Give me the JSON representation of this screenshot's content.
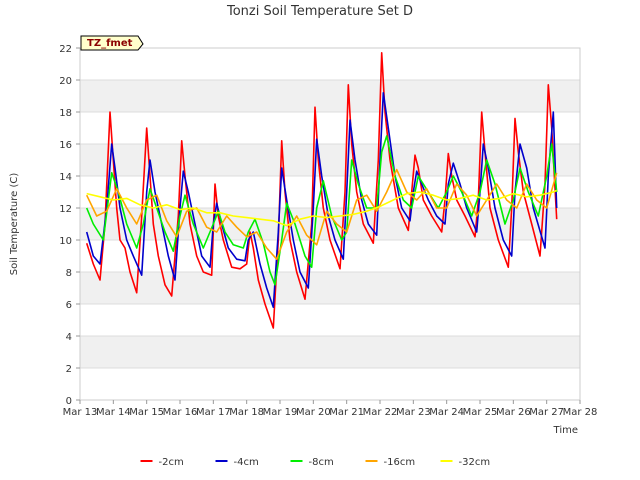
{
  "chart_data": {
    "type": "line",
    "title": "Tonzi Soil Temperature Set D",
    "xlabel": "Time",
    "ylabel": "Soil Temperature (C)",
    "tag": "TZ_fmet",
    "xlim": [
      13,
      28
    ],
    "ylim": [
      0,
      22
    ],
    "yticks": [
      0,
      2,
      4,
      6,
      8,
      10,
      12,
      14,
      16,
      18,
      20,
      22
    ],
    "xticks": [
      {
        "value": 13,
        "label": "Mar 13"
      },
      {
        "value": 14,
        "label": "Mar 14"
      },
      {
        "value": 15,
        "label": "Mar 15"
      },
      {
        "value": 16,
        "label": "Mar 16"
      },
      {
        "value": 17,
        "label": "Mar 17"
      },
      {
        "value": 18,
        "label": "Mar 18"
      },
      {
        "value": 19,
        "label": "Mar 19"
      },
      {
        "value": 20,
        "label": "Mar 20"
      },
      {
        "value": 21,
        "label": "Mar 21"
      },
      {
        "value": 22,
        "label": "Mar 22"
      },
      {
        "value": 23,
        "label": "Mar 23"
      },
      {
        "value": 24,
        "label": "Mar 24"
      },
      {
        "value": 25,
        "label": "Mar 25"
      },
      {
        "value": 26,
        "label": "Mar 26"
      },
      {
        "value": 27,
        "label": "Mar 27"
      },
      {
        "value": 28,
        "label": "Mar 28"
      }
    ],
    "grid": true,
    "legend_position": "bottom",
    "series": [
      {
        "name": "-2cm",
        "color": "#ff0000",
        "x": [
          13.2,
          13.4,
          13.6,
          13.75,
          13.9,
          14.0,
          14.1,
          14.2,
          14.35,
          14.5,
          14.7,
          14.85,
          15.0,
          15.1,
          15.2,
          15.35,
          15.55,
          15.75,
          15.95,
          16.05,
          16.15,
          16.3,
          16.5,
          16.7,
          16.95,
          17.05,
          17.15,
          17.3,
          17.55,
          17.8,
          18.0,
          18.1,
          18.2,
          18.35,
          18.55,
          18.8,
          18.95,
          19.05,
          19.15,
          19.3,
          19.5,
          19.75,
          19.95,
          20.05,
          20.15,
          20.3,
          20.5,
          20.8,
          20.95,
          21.05,
          21.15,
          21.3,
          21.5,
          21.8,
          21.95,
          22.05,
          22.15,
          22.3,
          22.55,
          22.85,
          22.95,
          23.05,
          23.15,
          23.3,
          23.55,
          23.85,
          23.95,
          24.05,
          24.15,
          24.3,
          24.55,
          24.85,
          24.95,
          25.05,
          25.15,
          25.3,
          25.55,
          25.85,
          25.95,
          26.05,
          26.15,
          26.3,
          26.55,
          26.8,
          26.95,
          27.05,
          27.15,
          27.3
        ],
        "y": [
          9.8,
          8.5,
          7.5,
          11.0,
          18.0,
          15.0,
          12.0,
          10.0,
          9.5,
          8.0,
          6.7,
          11.5,
          17.0,
          14.0,
          11.0,
          9.0,
          7.2,
          6.5,
          11.5,
          16.2,
          14.0,
          11.0,
          9.0,
          8.0,
          7.8,
          13.5,
          11.5,
          10.0,
          8.3,
          8.2,
          8.5,
          10.5,
          9.5,
          7.5,
          6.0,
          4.5,
          10.0,
          16.2,
          13.0,
          10.0,
          8.0,
          6.3,
          11.0,
          18.3,
          15.0,
          12.0,
          10.0,
          8.2,
          13.0,
          19.7,
          16.0,
          13.0,
          11.0,
          9.8,
          15.0,
          21.7,
          18.0,
          15.0,
          12.0,
          10.6,
          13.0,
          15.3,
          14.5,
          12.5,
          11.5,
          10.5,
          12.5,
          15.4,
          14.0,
          12.5,
          11.5,
          10.2,
          12.5,
          18.0,
          15.5,
          12.0,
          10.0,
          8.3,
          12.0,
          17.6,
          15.5,
          13.0,
          11.0,
          9.0,
          13.5,
          19.7,
          17.0,
          11.3
        ]
      },
      {
        "name": "-4cm",
        "color": "#0000cc",
        "x": [
          13.2,
          13.4,
          13.6,
          13.8,
          13.95,
          14.05,
          14.2,
          14.4,
          14.6,
          14.85,
          15.0,
          15.1,
          15.25,
          15.45,
          15.65,
          15.85,
          16.0,
          16.1,
          16.25,
          16.45,
          16.65,
          16.9,
          17.0,
          17.1,
          17.25,
          17.45,
          17.7,
          17.95,
          18.05,
          18.2,
          18.4,
          18.6,
          18.8,
          18.95,
          19.05,
          19.2,
          19.4,
          19.6,
          19.85,
          20.0,
          20.1,
          20.25,
          20.45,
          20.65,
          20.9,
          21.0,
          21.1,
          21.25,
          21.45,
          21.65,
          21.9,
          22.0,
          22.1,
          22.25,
          22.45,
          22.65,
          22.9,
          23.0,
          23.1,
          23.25,
          23.45,
          23.7,
          23.95,
          24.05,
          24.2,
          24.4,
          24.6,
          24.9,
          25.0,
          25.1,
          25.25,
          25.45,
          25.7,
          25.95,
          26.05,
          26.2,
          26.4,
          26.6,
          26.95,
          27.05,
          27.2,
          27.3
        ],
        "y": [
          10.5,
          9.0,
          8.5,
          12.0,
          16.0,
          14.5,
          12.0,
          10.0,
          9.0,
          7.8,
          13.0,
          15.0,
          13.0,
          11.0,
          9.0,
          7.5,
          12.0,
          14.3,
          13.0,
          11.0,
          9.0,
          8.3,
          11.0,
          12.3,
          11.0,
          9.5,
          8.8,
          8.7,
          10.0,
          10.5,
          8.5,
          7.0,
          5.8,
          10.5,
          14.5,
          12.5,
          10.0,
          8.0,
          7.0,
          12.0,
          16.3,
          14.0,
          11.5,
          10.0,
          8.8,
          13.0,
          17.5,
          15.0,
          12.5,
          11.0,
          10.3,
          15.0,
          19.2,
          17.0,
          14.0,
          12.0,
          11.2,
          13.0,
          14.3,
          13.5,
          12.5,
          11.5,
          11.0,
          13.5,
          14.8,
          13.5,
          12.0,
          10.5,
          13.0,
          16.0,
          14.5,
          12.0,
          10.0,
          9.0,
          13.0,
          16.0,
          14.5,
          12.0,
          9.5,
          14.0,
          18.0,
          12.0
        ]
      },
      {
        "name": "-8cm",
        "color": "#00ee00",
        "x": [
          13.2,
          13.4,
          13.7,
          13.95,
          14.15,
          14.4,
          14.7,
          14.9,
          15.1,
          15.3,
          15.55,
          15.8,
          16.0,
          16.15,
          16.4,
          16.7,
          17.0,
          17.15,
          17.35,
          17.6,
          17.9,
          18.05,
          18.25,
          18.5,
          18.7,
          18.85,
          19.05,
          19.2,
          19.45,
          19.75,
          19.95,
          20.1,
          20.3,
          20.55,
          20.85,
          21.0,
          21.15,
          21.35,
          21.6,
          21.9,
          22.05,
          22.2,
          22.45,
          22.7,
          22.95,
          23.15,
          23.45,
          23.75,
          24.0,
          24.2,
          24.45,
          24.75,
          25.0,
          25.2,
          25.45,
          25.75,
          26.0,
          26.2,
          26.45,
          26.75,
          27.0,
          27.15,
          27.3
        ],
        "y": [
          12.0,
          11.0,
          10.0,
          14.2,
          13.0,
          11.0,
          9.5,
          11.0,
          13.2,
          12.0,
          10.5,
          9.3,
          11.5,
          12.8,
          11.0,
          9.5,
          11.0,
          11.8,
          10.5,
          9.7,
          9.5,
          10.5,
          11.3,
          9.8,
          8.0,
          7.2,
          10.0,
          12.3,
          11.0,
          9.0,
          8.3,
          12.0,
          13.7,
          11.5,
          10.0,
          10.5,
          15.0,
          13.5,
          12.0,
          12.0,
          15.5,
          16.5,
          14.0,
          12.5,
          12.0,
          14.0,
          13.0,
          12.0,
          13.0,
          14.0,
          13.0,
          11.5,
          13.0,
          15.0,
          13.5,
          11.0,
          12.5,
          14.5,
          13.0,
          11.5,
          14.0,
          16.0,
          13.0
        ]
      },
      {
        "name": "-16cm",
        "color": "#ffa500",
        "x": [
          13.2,
          13.5,
          13.8,
          14.1,
          14.4,
          14.7,
          15.0,
          15.3,
          15.6,
          15.9,
          16.2,
          16.5,
          16.8,
          17.1,
          17.4,
          17.7,
          18.0,
          18.3,
          18.6,
          18.9,
          19.2,
          19.5,
          19.8,
          20.1,
          20.4,
          20.7,
          21.0,
          21.3,
          21.6,
          21.9,
          22.2,
          22.5,
          22.8,
          23.1,
          23.4,
          23.7,
          24.0,
          24.3,
          24.6,
          24.9,
          25.2,
          25.5,
          25.8,
          26.1,
          26.4,
          26.7,
          27.0,
          27.3
        ],
        "y": [
          12.8,
          11.5,
          11.8,
          13.2,
          12.0,
          11.0,
          12.5,
          12.8,
          11.2,
          10.2,
          11.8,
          12.0,
          10.8,
          10.5,
          11.5,
          10.8,
          10.2,
          10.5,
          9.5,
          8.8,
          10.5,
          11.5,
          10.3,
          9.7,
          11.8,
          11.0,
          10.5,
          12.5,
          12.8,
          11.8,
          13.0,
          14.4,
          13.0,
          12.5,
          13.2,
          12.0,
          12.0,
          13.5,
          12.8,
          11.5,
          12.5,
          13.5,
          12.5,
          12.0,
          13.5,
          12.5,
          12.0,
          14.2
        ]
      },
      {
        "name": "-32cm",
        "color": "#ffff00",
        "x": [
          13.2,
          13.6,
          14.0,
          14.4,
          14.8,
          15.2,
          15.6,
          16.0,
          16.4,
          16.8,
          17.2,
          17.6,
          18.0,
          18.4,
          18.8,
          19.2,
          19.6,
          20.0,
          20.4,
          20.8,
          21.2,
          21.6,
          22.0,
          22.4,
          22.8,
          23.2,
          23.6,
          24.0,
          24.4,
          24.8,
          25.2,
          25.6,
          26.0,
          26.4,
          26.8,
          27.2,
          27.3
        ],
        "y": [
          12.9,
          12.7,
          12.5,
          12.6,
          12.2,
          12.0,
          12.2,
          11.9,
          12.0,
          11.7,
          11.7,
          11.5,
          11.4,
          11.3,
          11.2,
          10.9,
          11.3,
          11.5,
          11.4,
          11.5,
          11.6,
          11.8,
          12.1,
          12.5,
          12.9,
          13.0,
          12.8,
          12.5,
          12.6,
          12.8,
          12.5,
          12.6,
          12.9,
          12.7,
          12.8,
          13.0,
          13.1
        ]
      }
    ]
  }
}
